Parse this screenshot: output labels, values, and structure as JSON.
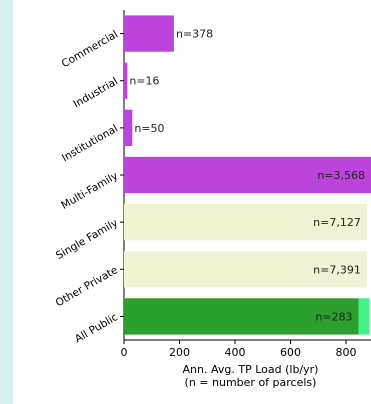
{
  "chart_data": {
    "type": "bar",
    "orientation": "horizontal",
    "title": "",
    "xlabel": "Ann. Avg. TP Load (lb/yr)",
    "xlabel_note": "(n = number of parcels)",
    "ylabel": "",
    "xlim": [
      0,
      890
    ],
    "x_ticks": [
      0,
      200,
      400,
      600,
      800
    ],
    "grid": false,
    "legend": "none",
    "categories": [
      "Commercial",
      "Industrial",
      "Institutional",
      "Multi-Family",
      "Single Family",
      "Other Private",
      "All Public"
    ],
    "bars": [
      {
        "category": "Commercial",
        "value": 180,
        "label": "n=378",
        "color": "#bb44dd",
        "label_inside": false
      },
      {
        "category": "Industrial",
        "value": 12,
        "label": "n=16",
        "color": "#bb44dd",
        "label_inside": false
      },
      {
        "category": "Institutional",
        "value": 30,
        "label": "n=50",
        "color": "#bb44dd",
        "label_inside": false
      },
      {
        "category": "Multi-Family",
        "value": 890,
        "label": "n=3,568",
        "color": "#bb44dd",
        "label_inside": true
      },
      {
        "category": "Single Family",
        "value": 875,
        "label": "n=7,127",
        "color": "#f2f2d4",
        "label_inside": true
      },
      {
        "category": "Other Private",
        "value": 875,
        "label": "n=7,391",
        "color": "#f2f2d4",
        "label_inside": true
      },
      {
        "category": "All Public",
        "value": 845,
        "value_extra": 40,
        "label": "n=283",
        "color": "#2ca02c",
        "extra_color": "#44ee88",
        "label_inside": true
      }
    ]
  }
}
